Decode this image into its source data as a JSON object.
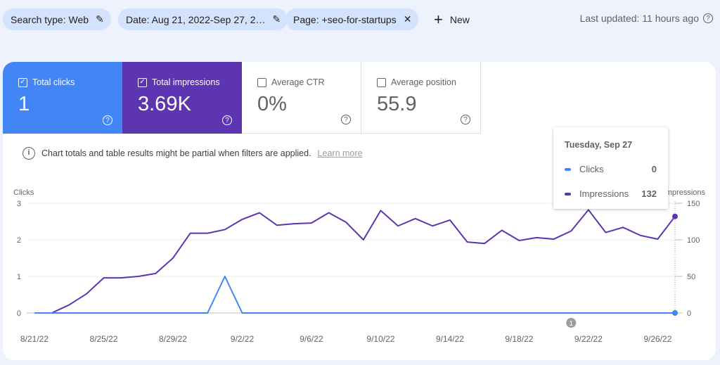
{
  "filters": [
    {
      "label": "Search type: Web",
      "icon": "pencil-icon"
    },
    {
      "label": "Date: Aug 21, 2022-Sep 27, 2…",
      "icon": "pencil-icon"
    },
    {
      "label": "Page: +seo-for-startups",
      "icon": "close-icon"
    }
  ],
  "new_label": "New",
  "last_updated": "Last updated: 11 hours ago",
  "metrics": [
    {
      "label": "Total clicks",
      "value": "1",
      "checked": true,
      "color": "#4285f4"
    },
    {
      "label": "Total impressions",
      "value": "3.69K",
      "checked": true,
      "color": "#5e35b1"
    },
    {
      "label": "Average CTR",
      "value": "0%",
      "checked": false
    },
    {
      "label": "Average position",
      "value": "55.9",
      "checked": false
    }
  ],
  "notice": {
    "text": "Chart totals and table results might be partial when filters are applied.",
    "link": "Learn more"
  },
  "tooltip": {
    "title": "Tuesday, Sep 27",
    "rows": [
      {
        "label": "Clicks",
        "value": "0"
      },
      {
        "label": "Impressions",
        "value": "132"
      }
    ]
  },
  "chart_data": {
    "type": "line",
    "left_axis": {
      "label": "Clicks",
      "ylim": [
        0,
        3
      ],
      "ticks": [
        "0",
        "1",
        "2",
        "3"
      ]
    },
    "right_axis": {
      "label": "Impressions",
      "ylim": [
        0,
        150
      ],
      "ticks": [
        "0",
        "50",
        "100",
        "150"
      ]
    },
    "x_tick_labels": [
      "8/21/22",
      "8/25/22",
      "8/29/22",
      "9/2/22",
      "9/6/22",
      "9/10/22",
      "9/14/22",
      "9/18/22",
      "9/22/22",
      "9/26/22"
    ],
    "x": [
      "8/21/22",
      "8/22/22",
      "8/23/22",
      "8/24/22",
      "8/25/22",
      "8/26/22",
      "8/27/22",
      "8/28/22",
      "8/29/22",
      "8/30/22",
      "8/31/22",
      "9/1/22",
      "9/2/22",
      "9/3/22",
      "9/4/22",
      "9/5/22",
      "9/6/22",
      "9/7/22",
      "9/8/22",
      "9/9/22",
      "9/10/22",
      "9/11/22",
      "9/12/22",
      "9/13/22",
      "9/14/22",
      "9/15/22",
      "9/16/22",
      "9/17/22",
      "9/18/22",
      "9/19/22",
      "9/20/22",
      "9/21/22",
      "9/22/22",
      "9/23/22",
      "9/24/22",
      "9/25/22",
      "9/26/22",
      "9/27/22"
    ],
    "series": [
      {
        "name": "Clicks",
        "axis": "left",
        "color": "#4285f4",
        "values": [
          0,
          0,
          0,
          0,
          0,
          0,
          0,
          0,
          0,
          0,
          0,
          1,
          0,
          0,
          0,
          0,
          0,
          0,
          0,
          0,
          0,
          0,
          0,
          0,
          0,
          0,
          0,
          0,
          0,
          0,
          0,
          0,
          0,
          0,
          0,
          0,
          0,
          0
        ]
      },
      {
        "name": "Impressions",
        "axis": "right",
        "color": "#5e35b1",
        "values": [
          0,
          0,
          11,
          26,
          48,
          48,
          50,
          54,
          75,
          109,
          109,
          114,
          128,
          137,
          120,
          122,
          123,
          137,
          124,
          100,
          140,
          119,
          129,
          119,
          127,
          97,
          95,
          113,
          99,
          103,
          101,
          112,
          141,
          110,
          117,
          106,
          101,
          132
        ]
      }
    ],
    "annotation": {
      "date": "9/21/22",
      "label": "1"
    },
    "grid": true
  }
}
